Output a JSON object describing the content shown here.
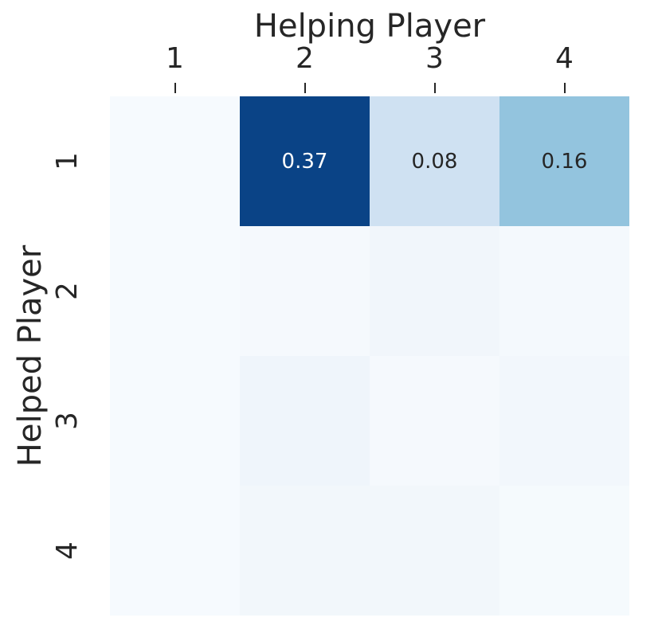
{
  "figure": {
    "background_color": "#ffffff",
    "text_color": "#262626"
  },
  "chart_data": {
    "type": "heatmap",
    "title": "",
    "xlabel": "Helping Player",
    "xlabel_position": "top",
    "ylabel": "Helped Player",
    "x_tick_labels": [
      "1",
      "2",
      "3",
      "4"
    ],
    "y_tick_labels": [
      "1",
      "2",
      "3",
      "4"
    ],
    "y_tick_rotation": 90,
    "colormap": "Blues",
    "color_range": [
      0.0,
      0.4
    ],
    "grid": false,
    "legend_position": "none",
    "colorbar": false,
    "rows": [
      {
        "helped_player": "1",
        "values": [
          0.0,
          0.37,
          0.08,
          0.16
        ],
        "labels": [
          "",
          "0.37",
          "0.08",
          "0.16"
        ],
        "colors": [
          "#f6fafe",
          "#0a4386",
          "#cfe1f2",
          "#93c4de"
        ],
        "label_colors": [
          "#262626",
          "#ffffff",
          "#262626",
          "#262626"
        ]
      },
      {
        "helped_player": "2",
        "values": [
          0.0,
          0.0,
          0.02,
          0.01
        ],
        "labels": [
          "",
          "",
          "",
          ""
        ],
        "colors": [
          "#f6fafe",
          "#f5f9fd",
          "#f1f6fb",
          "#f4f9fd"
        ],
        "label_colors": [
          "#262626",
          "#262626",
          "#262626",
          "#262626"
        ]
      },
      {
        "helped_player": "3",
        "values": [
          0.0,
          0.03,
          0.01,
          0.02
        ],
        "labels": [
          "",
          "",
          "",
          ""
        ],
        "colors": [
          "#f6fafe",
          "#eff5fb",
          "#f5f9fd",
          "#f2f7fc"
        ],
        "label_colors": [
          "#262626",
          "#262626",
          "#262626",
          "#262626"
        ]
      },
      {
        "helped_player": "4",
        "values": [
          0.0,
          0.02,
          0.02,
          0.01
        ],
        "labels": [
          "",
          "",
          "",
          ""
        ],
        "colors": [
          "#f6fafe",
          "#f2f7fb",
          "#f2f7fb",
          "#f5fafd"
        ],
        "label_colors": [
          "#262626",
          "#262626",
          "#262626",
          "#262626"
        ]
      }
    ]
  }
}
